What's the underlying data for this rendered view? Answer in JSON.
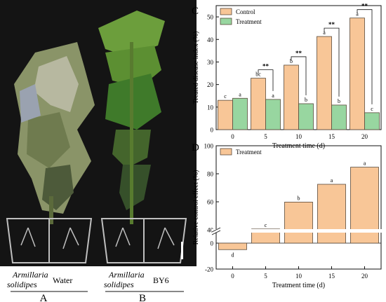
{
  "panels": {
    "photo": {
      "caption_A_line1": "Armillaria",
      "caption_A_line2": "solidipes",
      "caption_A_right": "Water",
      "caption_B_line1": "Armillaria",
      "caption_B_line2": "solidipes",
      "caption_B_right": "BY6",
      "letter_A": "A",
      "letter_B": "B"
    }
  },
  "colors": {
    "control": "#F8C697",
    "treatment": "#98D6A0",
    "bar_stroke": "#5a4a3a",
    "photo_bg": "#141414"
  },
  "chart_data": [
    {
      "panel": "C",
      "type": "bar",
      "x": [
        0,
        5,
        10,
        15,
        20
      ],
      "categories": [
        "0",
        "5",
        "10",
        "15",
        "20"
      ],
      "series": [
        {
          "name": "Control",
          "values": [
            13,
            22.8,
            28.6,
            41.3,
            49.5
          ],
          "letters": [
            "c",
            "bc",
            "b",
            "a",
            "a"
          ]
        },
        {
          "name": "Treatment",
          "values": [
            13.9,
            13.4,
            11.5,
            10.9,
            7.5
          ],
          "letters": [
            "a",
            "a",
            "b",
            "b",
            "c"
          ]
        }
      ],
      "significance": [
        "",
        "**",
        "**",
        "**",
        "**"
      ],
      "xlabel": "Treatment time (d)",
      "ylabel": "Treated disease index (%)",
      "ylim": [
        0,
        55
      ],
      "yticks": [
        0,
        10,
        20,
        30,
        40,
        50
      ],
      "legend_position": "top-left",
      "grid": false
    },
    {
      "panel": "D",
      "type": "bar",
      "x": [
        0,
        5,
        10,
        15,
        20
      ],
      "categories": [
        "0",
        "5",
        "10",
        "15",
        "20"
      ],
      "series": [
        {
          "name": "Treatment",
          "values": [
            -5,
            40.6,
            59.8,
            72.5,
            84.7
          ],
          "letters": [
            "d",
            "c",
            "b",
            "a",
            "a"
          ]
        }
      ],
      "xlabel": "Treatment time (d)",
      "ylabel": "Relative control  effect (%)",
      "ylim": [
        -20,
        100
      ],
      "yticks": [
        -20,
        0,
        40,
        60,
        80,
        100
      ],
      "axis_break": true,
      "legend_position": "top-left",
      "grid": false
    }
  ]
}
